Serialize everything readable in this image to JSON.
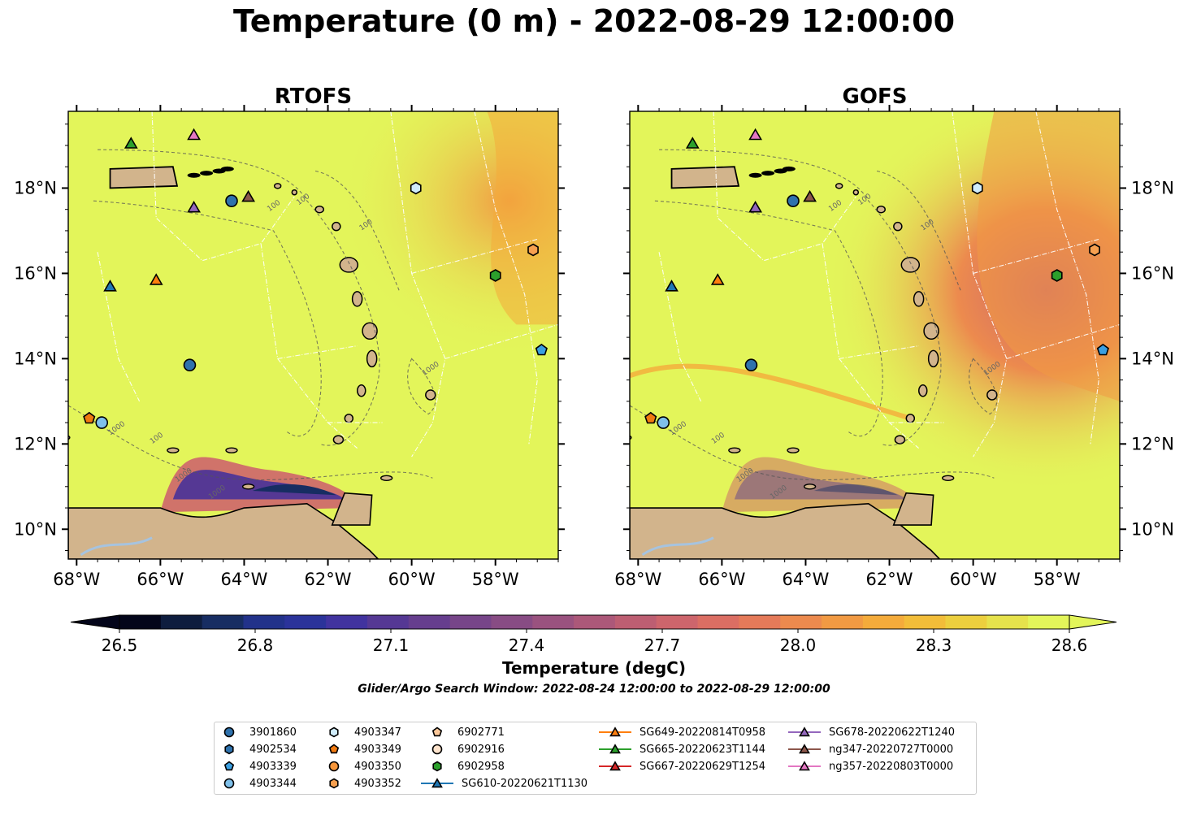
{
  "figure": {
    "title": "Temperature (0 m) - 2022-08-29 12:00:00",
    "footnote": "Glider/Argo Search Window: 2022-08-24 12:00:00 to 2022-08-29 12:00:00"
  },
  "colors": {
    "land": "#d2b48c",
    "inland_water": "#a6c3df",
    "warm_background": "#e3f55a"
  },
  "chart_data": [
    {
      "type": "heatmap",
      "title": "RTOFS",
      "variable": "Temperature (0 m)",
      "x_ticks": [
        "68°W",
        "66°W",
        "64°W",
        "62°W",
        "60°W",
        "58°W"
      ],
      "y_ticks": [
        "18°N",
        "16°N",
        "14°N",
        "12°N",
        "10°N"
      ],
      "xlim": [
        -68.2,
        -56.5
      ],
      "ylim": [
        9.3,
        19.8
      ],
      "grid": false,
      "contour_labels": [
        "100",
        "100",
        "100",
        "1000",
        "1000",
        "1000",
        "100",
        "1000"
      ],
      "markers": [
        {
          "id": "3901860",
          "lon": -64.3,
          "lat": 17.7
        },
        {
          "id": "3901860",
          "lon": -65.3,
          "lat": 13.85
        },
        {
          "id": "4903347",
          "lon": -59.9,
          "lat": 18.0
        },
        {
          "id": "4903339",
          "lon": -56.9,
          "lat": 14.2
        },
        {
          "id": "6902958",
          "lon": -58.0,
          "lat": 15.95
        },
        {
          "id": "4903352",
          "lon": -57.1,
          "lat": 16.55
        },
        {
          "id": "4903349",
          "lon": -67.7,
          "lat": 12.6
        },
        {
          "id": "4903344",
          "lon": -67.4,
          "lat": 12.5
        },
        {
          "id": "SG610-20220621T1130",
          "lon": -67.2,
          "lat": 15.7
        },
        {
          "id": "SG649-20220814T0958",
          "lon": -66.1,
          "lat": 15.85
        },
        {
          "id": "SG665-20220623T1144",
          "lon": -66.7,
          "lat": 19.05
        },
        {
          "id": "ng357-20220803T0000",
          "lon": -65.2,
          "lat": 19.25
        },
        {
          "id": "SG678-20220622T1240",
          "lon": -65.2,
          "lat": 17.55
        },
        {
          "id": "ng347-20220727T0000",
          "lon": -63.9,
          "lat": 17.8
        }
      ]
    },
    {
      "type": "heatmap",
      "title": "GOFS",
      "variable": "Temperature (0 m)",
      "x_ticks": [
        "68°W",
        "66°W",
        "64°W",
        "62°W",
        "60°W",
        "58°W"
      ],
      "y_ticks": [
        "18°N",
        "16°N",
        "14°N",
        "12°N",
        "10°N"
      ],
      "xlim": [
        -68.2,
        -56.5
      ],
      "ylim": [
        9.3,
        19.8
      ],
      "grid": false,
      "contour_labels": [
        "100",
        "100",
        "100",
        "1000",
        "1000",
        "1000",
        "100",
        "1000"
      ],
      "markers": [
        {
          "id": "3901860",
          "lon": -64.3,
          "lat": 17.7
        },
        {
          "id": "3901860",
          "lon": -65.3,
          "lat": 13.85
        },
        {
          "id": "4903347",
          "lon": -59.9,
          "lat": 18.0
        },
        {
          "id": "4903339",
          "lon": -56.9,
          "lat": 14.2
        },
        {
          "id": "6902958",
          "lon": -58.0,
          "lat": 15.95
        },
        {
          "id": "4903352",
          "lon": -57.1,
          "lat": 16.55
        },
        {
          "id": "4903349",
          "lon": -67.7,
          "lat": 12.6
        },
        {
          "id": "4903344",
          "lon": -67.4,
          "lat": 12.5
        },
        {
          "id": "SG610-20220621T1130",
          "lon": -67.2,
          "lat": 15.7
        },
        {
          "id": "SG649-20220814T0958",
          "lon": -66.1,
          "lat": 15.85
        },
        {
          "id": "SG665-20220623T1144",
          "lon": -66.7,
          "lat": 19.05
        },
        {
          "id": "ng357-20220803T0000",
          "lon": -65.2,
          "lat": 19.25
        },
        {
          "id": "SG678-20220622T1240",
          "lon": -65.2,
          "lat": 17.55
        },
        {
          "id": "ng347-20220727T0000",
          "lon": -63.9,
          "lat": 17.8
        }
      ]
    }
  ],
  "colorbar": {
    "label": "Temperature (degC)",
    "ticks": [
      "26.5",
      "26.8",
      "27.1",
      "27.4",
      "27.7",
      "28.0",
      "28.3",
      "28.6"
    ],
    "range": [
      26.5,
      28.6
    ],
    "extend": "both",
    "colors": [
      "#03051a",
      "#0e1d3e",
      "#172d62",
      "#22328a",
      "#2b339a",
      "#41339f",
      "#553894",
      "#663e8e",
      "#774589",
      "#884c84",
      "#9a527f",
      "#ac5879",
      "#bd5e72",
      "#cd656c",
      "#db6e63",
      "#e57a59",
      "#ec8a4e",
      "#f19a43",
      "#f4ab3b",
      "#f2bd39",
      "#eccf3e",
      "#e6e24c",
      "#e3f55a"
    ]
  },
  "legend": {
    "items": [
      {
        "label": "3901860",
        "shape": "circle",
        "color": "#2f72ad",
        "line": false
      },
      {
        "label": "4902534",
        "shape": "hexagon",
        "color": "#2f72ad",
        "line": false
      },
      {
        "label": "4903339",
        "shape": "pentagon",
        "color": "#3b9fe0",
        "line": false
      },
      {
        "label": "4903344",
        "shape": "circle",
        "color": "#7fc0ea",
        "line": false
      },
      {
        "label": "4903347",
        "shape": "hexagon",
        "color": "#d0ecfb",
        "line": false
      },
      {
        "label": "4903349",
        "shape": "pentagon",
        "color": "#f07a10",
        "line": false
      },
      {
        "label": "4903350",
        "shape": "circle",
        "color": "#f7963a",
        "line": false
      },
      {
        "label": "4903352",
        "shape": "hexagon",
        "color": "#f7a050",
        "line": false
      },
      {
        "label": "6902771",
        "shape": "pentagon",
        "color": "#fcc89a",
        "line": false
      },
      {
        "label": "6902916",
        "shape": "circle",
        "color": "#fde3cc",
        "line": false
      },
      {
        "label": "6902958",
        "shape": "hexagon",
        "color": "#2ca02c",
        "line": false
      },
      {
        "label": "SG610-20220621T1130",
        "shape": "triangle",
        "color": "#1f77b4",
        "line": true
      },
      {
        "label": "SG649-20220814T0958",
        "shape": "triangle",
        "color": "#ff7f0e",
        "line": true
      },
      {
        "label": "SG665-20220623T1144",
        "shape": "triangle",
        "color": "#2ca02c",
        "line": true
      },
      {
        "label": "SG667-20220629T1254",
        "shape": "triangle",
        "color": "#d62728",
        "line": true
      },
      {
        "label": "SG678-20220622T1240",
        "shape": "triangle",
        "color": "#9467bd",
        "line": true
      },
      {
        "label": "ng347-20220727T0000",
        "shape": "triangle",
        "color": "#8c564b",
        "line": true
      },
      {
        "label": "ng357-20220803T0000",
        "shape": "triangle",
        "color": "#e377c2",
        "line": true
      }
    ]
  }
}
